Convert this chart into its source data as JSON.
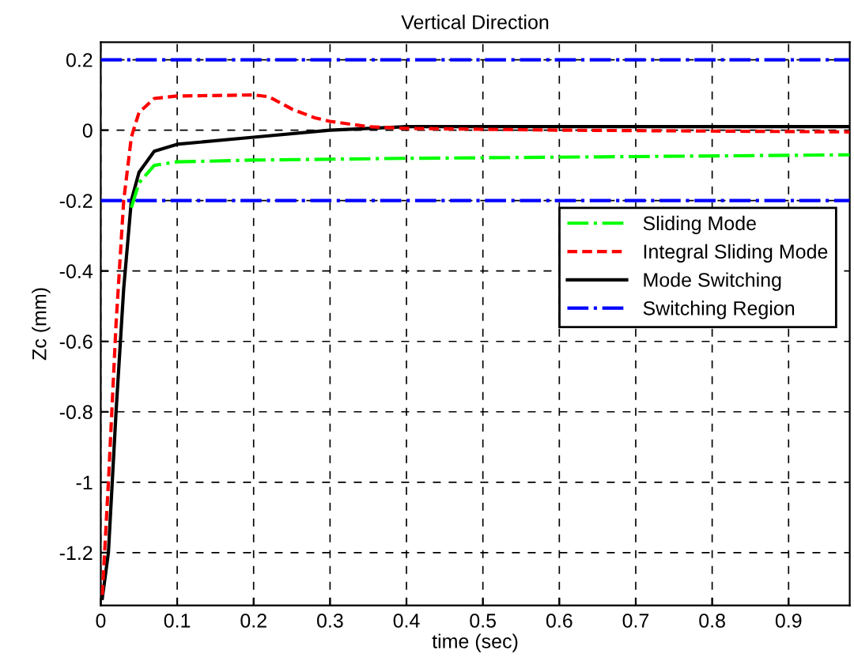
{
  "chart_data": {
    "type": "line",
    "title": "Vertical Direction",
    "xlabel": "time (sec)",
    "ylabel": "Zc (mm)",
    "xlim": [
      0,
      0.98
    ],
    "ylim": [
      -1.35,
      0.25
    ],
    "xticks": [
      0,
      0.1,
      0.2,
      0.3,
      0.4,
      0.5,
      0.6,
      0.7,
      0.8,
      0.9
    ],
    "yticks": [
      -1.2,
      -1,
      -0.8,
      -0.6,
      -0.4,
      -0.2,
      0,
      0.2
    ],
    "grid": true,
    "legend": "right",
    "series": [
      {
        "name": "Sliding Mode",
        "color": "#00ff00",
        "line_style": "dashdot",
        "x": [
          0.04,
          0.05,
          0.07,
          0.1,
          0.2,
          0.4,
          0.7,
          0.98
        ],
        "values": [
          -0.22,
          -0.15,
          -0.1,
          -0.09,
          -0.085,
          -0.08,
          -0.075,
          -0.07
        ]
      },
      {
        "name": "Integral Sliding Mode",
        "color": "#ff0000",
        "line_style": "dashed",
        "x": [
          0.002,
          0.01,
          0.02,
          0.03,
          0.04,
          0.05,
          0.07,
          0.1,
          0.2,
          0.22,
          0.25,
          0.28,
          0.3,
          0.35,
          0.4,
          0.6,
          0.98
        ],
        "values": [
          -1.32,
          -1.0,
          -0.55,
          -0.2,
          -0.02,
          0.05,
          0.09,
          0.097,
          0.1,
          0.095,
          0.06,
          0.035,
          0.025,
          0.01,
          0.005,
          0.0,
          -0.005
        ]
      },
      {
        "name": "Mode Switching",
        "color": "#000000",
        "line_style": "solid",
        "x": [
          0.002,
          0.01,
          0.02,
          0.03,
          0.04,
          0.05,
          0.07,
          0.1,
          0.2,
          0.3,
          0.4,
          0.6,
          0.98
        ],
        "values": [
          -1.33,
          -1.2,
          -0.8,
          -0.45,
          -0.2,
          -0.12,
          -0.06,
          -0.04,
          -0.02,
          0.0,
          0.01,
          0.01,
          0.01
        ]
      },
      {
        "name": "Switching Region",
        "color": "#0000ff",
        "line_style": "dashdot",
        "x": [
          0,
          0.98
        ],
        "values": [
          0.2,
          0.2
        ]
      },
      {
        "color": "#0000ff",
        "line_style": "dashdot",
        "x": [
          0,
          0.98
        ],
        "values": [
          -0.2,
          -0.2
        ]
      }
    ]
  }
}
